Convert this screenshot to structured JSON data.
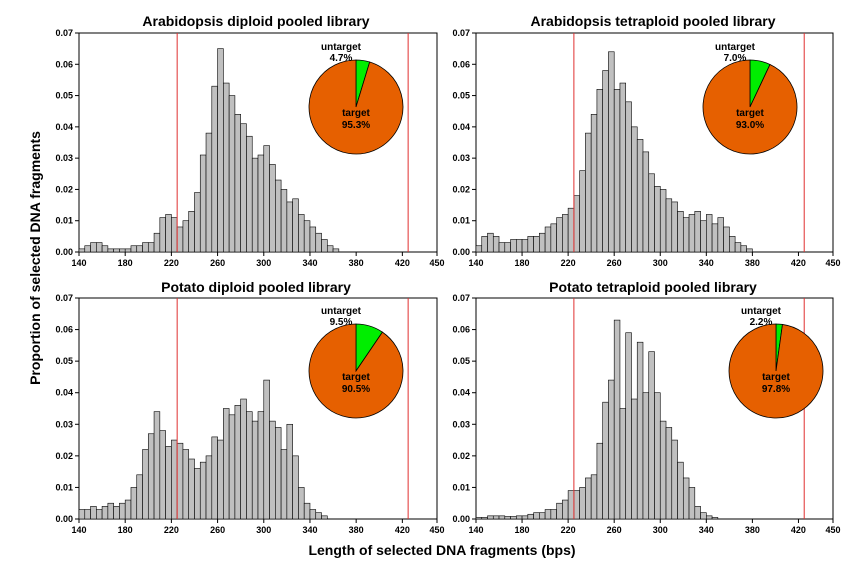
{
  "figure": {
    "xlabel": "Length of selected DNA fragments (bps)",
    "ylabel": "Proportion of selected DNA fragments"
  },
  "chart_data": [
    {
      "type": "bar",
      "title": "Arabidopsis diploid pooled library",
      "xlim": [
        140,
        450
      ],
      "ylim": [
        0,
        0.07
      ],
      "xticks": [
        "140",
        "180",
        "220",
        "260",
        "300",
        "340",
        "380",
        "420",
        "450"
      ],
      "yticks": [
        "0.00",
        "0.01",
        "0.02",
        "0.03",
        "0.04",
        "0.05",
        "0.06",
        "0.07"
      ],
      "bin_start": 140,
      "bin_width": 5,
      "values": [
        0.001,
        0.002,
        0.003,
        0.003,
        0.002,
        0.001,
        0.001,
        0.001,
        0.001,
        0.002,
        0.002,
        0.003,
        0.003,
        0.006,
        0.011,
        0.012,
        0.011,
        0.008,
        0.01,
        0.013,
        0.019,
        0.031,
        0.038,
        0.053,
        0.065,
        0.054,
        0.05,
        0.044,
        0.041,
        0.037,
        0.03,
        0.031,
        0.034,
        0.028,
        0.023,
        0.02,
        0.016,
        0.017,
        0.012,
        0.01,
        0.008,
        0.006,
        0.004,
        0.002,
        0.001
      ],
      "marker_lines": [
        225,
        425
      ],
      "pie": [
        {
          "label": "untarget",
          "percent_label": "4.7%",
          "value": 4.7,
          "color": "#00ee00"
        },
        {
          "label": "target",
          "percent_label": "95.3%",
          "value": 95.3,
          "color": "#e66000"
        }
      ]
    },
    {
      "type": "bar",
      "title": "Arabidopsis tetraploid pooled library",
      "xlim": [
        140,
        450
      ],
      "ylim": [
        0,
        0.07
      ],
      "xticks": [
        "140",
        "180",
        "220",
        "260",
        "300",
        "340",
        "380",
        "420",
        "450"
      ],
      "yticks": [
        "0.00",
        "0.01",
        "0.02",
        "0.03",
        "0.04",
        "0.05",
        "0.06",
        "0.07"
      ],
      "bin_start": 140,
      "bin_width": 5,
      "values": [
        0.002,
        0.005,
        0.006,
        0.005,
        0.003,
        0.003,
        0.004,
        0.004,
        0.004,
        0.005,
        0.005,
        0.006,
        0.008,
        0.009,
        0.011,
        0.012,
        0.014,
        0.018,
        0.026,
        0.038,
        0.044,
        0.052,
        0.058,
        0.064,
        0.052,
        0.054,
        0.048,
        0.04,
        0.036,
        0.032,
        0.025,
        0.021,
        0.02,
        0.017,
        0.016,
        0.013,
        0.011,
        0.012,
        0.013,
        0.01,
        0.012,
        0.009,
        0.011,
        0.008,
        0.005,
        0.003,
        0.002,
        0.001
      ],
      "marker_lines": [
        225,
        425
      ],
      "pie": [
        {
          "label": "untarget",
          "percent_label": "7.0%",
          "value": 7.0,
          "color": "#00ee00"
        },
        {
          "label": "target",
          "percent_label": "93.0%",
          "value": 93.0,
          "color": "#e66000"
        }
      ]
    },
    {
      "type": "bar",
      "title": "Potato diploid pooled library",
      "xlim": [
        140,
        450
      ],
      "ylim": [
        0,
        0.07
      ],
      "xticks": [
        "140",
        "180",
        "220",
        "260",
        "300",
        "340",
        "380",
        "420",
        "450"
      ],
      "yticks": [
        "0.00",
        "0.01",
        "0.02",
        "0.03",
        "0.04",
        "0.05",
        "0.06",
        "0.07"
      ],
      "bin_start": 140,
      "bin_width": 5,
      "values": [
        0.003,
        0.003,
        0.004,
        0.003,
        0.004,
        0.005,
        0.004,
        0.005,
        0.006,
        0.01,
        0.014,
        0.022,
        0.027,
        0.034,
        0.028,
        0.023,
        0.025,
        0.024,
        0.022,
        0.019,
        0.016,
        0.018,
        0.02,
        0.026,
        0.025,
        0.035,
        0.033,
        0.036,
        0.038,
        0.034,
        0.031,
        0.034,
        0.044,
        0.031,
        0.029,
        0.022,
        0.03,
        0.02,
        0.01,
        0.005,
        0.003,
        0.002,
        0.001
      ],
      "marker_lines": [
        225,
        425
      ],
      "pie": [
        {
          "label": "untarget",
          "percent_label": "9.5%",
          "value": 9.5,
          "color": "#00ee00"
        },
        {
          "label": "target",
          "percent_label": "90.5%",
          "value": 90.5,
          "color": "#e66000"
        }
      ]
    },
    {
      "type": "bar",
      "title": "Potato tetraploid pooled library",
      "xlim": [
        140,
        450
      ],
      "ylim": [
        0,
        0.07
      ],
      "xticks": [
        "140",
        "180",
        "220",
        "260",
        "300",
        "340",
        "380",
        "420",
        "450"
      ],
      "yticks": [
        "0.00",
        "0.01",
        "0.02",
        "0.03",
        "0.04",
        "0.05",
        "0.06",
        "0.07"
      ],
      "bin_start": 140,
      "bin_width": 5,
      "values": [
        0.0005,
        0.0005,
        0.001,
        0.001,
        0.001,
        0.0008,
        0.0008,
        0.001,
        0.001,
        0.0015,
        0.002,
        0.002,
        0.003,
        0.003,
        0.005,
        0.006,
        0.009,
        0.009,
        0.01,
        0.013,
        0.014,
        0.024,
        0.037,
        0.044,
        0.063,
        0.035,
        0.059,
        0.038,
        0.056,
        0.04,
        0.053,
        0.04,
        0.031,
        0.029,
        0.025,
        0.018,
        0.013,
        0.01,
        0.004,
        0.002,
        0.001,
        0.0005
      ],
      "marker_lines": [
        225,
        425
      ],
      "pie": [
        {
          "label": "untarget",
          "percent_label": "2.2%",
          "value": 2.2,
          "color": "#00ee00"
        },
        {
          "label": "target",
          "percent_label": "97.8%",
          "value": 97.8,
          "color": "#e66000"
        }
      ]
    }
  ]
}
